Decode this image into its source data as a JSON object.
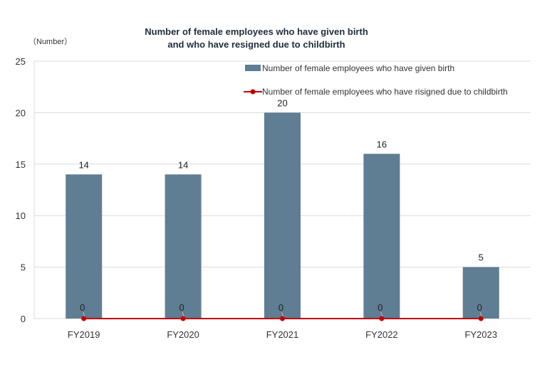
{
  "chart_data": {
    "type": "bar",
    "title_line1": "Number of female employees who have given birth",
    "title_line2": "and who have resigned due to childbirth",
    "ylabel": "（Number）",
    "categories": [
      "FY2019",
      "FY2020",
      "FY2021",
      "FY2022",
      "FY2023"
    ],
    "ylim": [
      0,
      25
    ],
    "yticks": [
      0,
      5,
      10,
      15,
      20,
      25
    ],
    "grid": true,
    "legend_position": "top-right",
    "series": [
      {
        "name": "Number of female employees who have given birth",
        "type": "bar",
        "values": [
          14,
          14,
          20,
          16,
          5
        ],
        "color": "#5f7d93"
      },
      {
        "name": "Number of female employees who have risigned due to childbirth",
        "type": "line",
        "values": [
          0,
          0,
          0,
          0,
          0
        ],
        "color": "#c00000"
      }
    ]
  }
}
